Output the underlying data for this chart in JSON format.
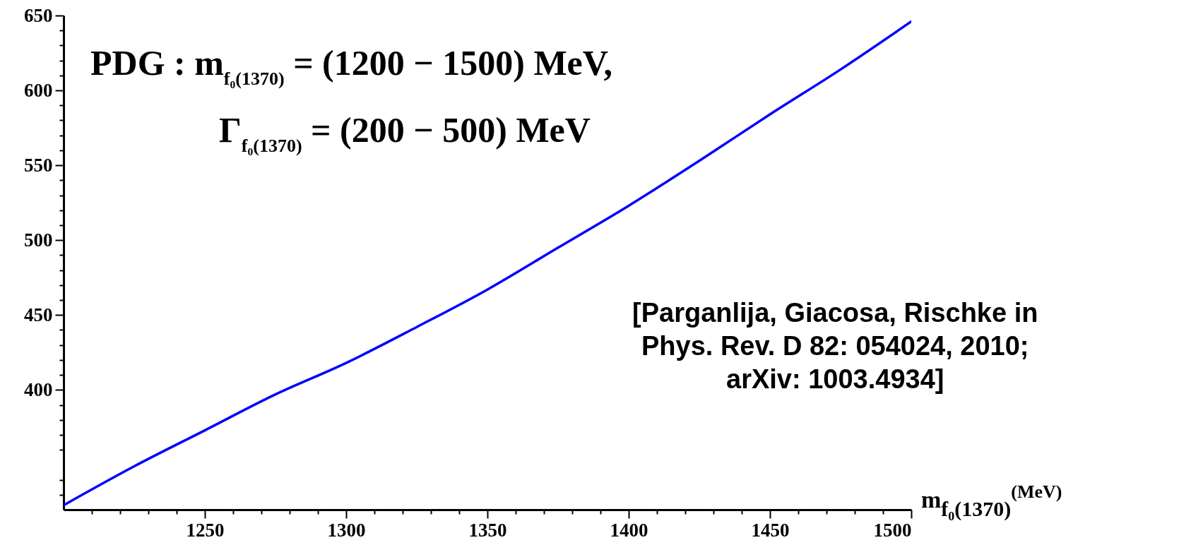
{
  "chart_data": {
    "type": "line",
    "xlabel": "m$_{f₀(1370)}$$^{(MeV)}$",
    "annotations": [
      "PDG : m$_{f₀(1370)}$ = (1200 − 1500) MeV,",
      "Γ$_{f₀(1370)}$ = (200 − 500) MeV",
      "[Parganlija, Giacosa, Rischke in\nPhys. Rev. D 82: 054024, 2010;\narXiv: 1003.4934]"
    ],
    "x": [
      1200,
      1225,
      1250,
      1275,
      1300,
      1325,
      1350,
      1375,
      1400,
      1425,
      1450,
      1475,
      1500
    ],
    "series": [
      {
        "color": "#0000ff",
        "values": [
          323,
          349,
          373,
          397,
          418,
          442,
          467,
          495,
          523,
          553,
          584,
          614,
          646
        ]
      }
    ],
    "xlim": [
      1200,
      1500
    ],
    "ylim": [
      320,
      650
    ],
    "xticks": [
      {
        "value": 1210,
        "label": null
      },
      {
        "value": 1220,
        "label": null
      },
      {
        "value": 1230,
        "label": null
      },
      {
        "value": 1240,
        "label": null
      },
      1250,
      {
        "value": 1260,
        "label": null
      },
      {
        "value": 1270,
        "label": null
      },
      {
        "value": 1280,
        "label": null
      },
      {
        "value": 1290,
        "label": null
      },
      1300,
      {
        "value": 1310,
        "label": null
      },
      {
        "value": 1320,
        "label": null
      },
      {
        "value": 1330,
        "label": null
      },
      {
        "value": 1340,
        "label": null
      },
      1350,
      {
        "value": 1360,
        "label": null
      },
      {
        "value": 1370,
        "label": null
      },
      {
        "value": 1380,
        "label": null
      },
      {
        "value": 1390,
        "label": null
      },
      1400,
      {
        "value": 1410,
        "label": null
      },
      {
        "value": 1420,
        "label": null
      },
      {
        "value": 1430,
        "label": null
      },
      {
        "value": 1440,
        "label": null
      },
      1450,
      {
        "value": 1460,
        "label": null
      },
      {
        "value": 1470,
        "label": null
      },
      {
        "value": 1480,
        "label": null
      },
      {
        "value": 1490,
        "label": null
      },
      1500
    ],
    "yticks": [
      {
        "value": 330,
        "label": null
      },
      {
        "value": 340,
        "label": null
      },
      {
        "value": 360,
        "label": null
      },
      {
        "value": 370,
        "label": null
      },
      {
        "value": 380,
        "label": null
      },
      {
        "value": 390,
        "label": null
      },
      400,
      {
        "value": 410,
        "label": null
      },
      {
        "value": 420,
        "label": null
      },
      {
        "value": 430,
        "label": null
      },
      {
        "value": 440,
        "label": null
      },
      450,
      {
        "value": 460,
        "label": null
      },
      {
        "value": 470,
        "label": null
      },
      {
        "value": 480,
        "label": null
      },
      {
        "value": 490,
        "label": null
      },
      500,
      {
        "value": 510,
        "label": null
      },
      {
        "value": 520,
        "label": null
      },
      {
        "value": 530,
        "label": null
      },
      {
        "value": 540,
        "label": null
      },
      550,
      {
        "value": 560,
        "label": null
      },
      {
        "value": 570,
        "label": null
      },
      {
        "value": 580,
        "label": null
      },
      {
        "value": 590,
        "label": null
      },
      600,
      {
        "value": 610,
        "label": null
      },
      {
        "value": 620,
        "label": null
      },
      {
        "value": 630,
        "label": null
      },
      {
        "value": 640,
        "label": null
      },
      650
    ],
    "grid": false,
    "marker": "none",
    "line_style": "solid"
  }
}
